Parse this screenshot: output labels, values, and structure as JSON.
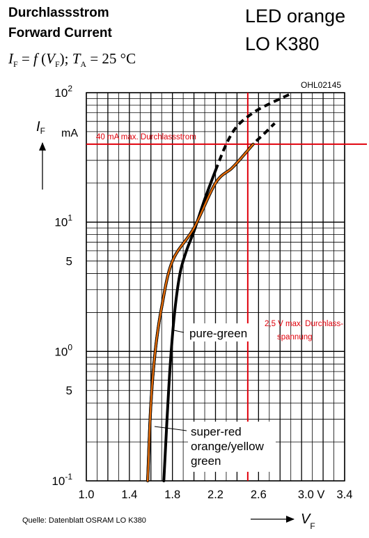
{
  "header": {
    "title_de": "Durchlassstrom",
    "title_en": "Forward Current",
    "formula": {
      "lhs": "I",
      "lhs_sub": "F",
      "eq": " = ",
      "fn": "f",
      "arg": "V",
      "arg_sub": "F",
      "sep": "; ",
      "t": "T",
      "t_sub": "A",
      "t_val": " = 25 °C"
    }
  },
  "product": {
    "line1": "LED orange",
    "line2": "LO K380"
  },
  "footer": {
    "source": "Quelle: Datenblatt OSRAM LO K380"
  },
  "chart_data": {
    "type": "line",
    "figure_code": "OHL02145",
    "xlabel": "V",
    "xlabel_sub": "F",
    "ylabel": "I",
    "ylabel_sub": "F",
    "yunit": "mA",
    "xlim": [
      1.0,
      3.4
    ],
    "ylim": [
      0.1,
      100
    ],
    "yscale": "log",
    "grid": true,
    "x_ticks": [
      {
        "value": 1.0,
        "label": "1.0"
      },
      {
        "value": 1.4,
        "label": "1.4"
      },
      {
        "value": 1.8,
        "label": "1.8"
      },
      {
        "value": 2.2,
        "label": "2.2"
      },
      {
        "value": 2.6,
        "label": "2.6"
      },
      {
        "value": 3.0,
        "label": "3.0 V"
      },
      {
        "value": 3.4,
        "label": "3.4"
      }
    ],
    "y_ticks": [
      {
        "value": 100,
        "base": "10",
        "exp": "2"
      },
      {
        "value": 10,
        "base": "10",
        "exp": "1"
      },
      {
        "value": 5,
        "label": "5"
      },
      {
        "value": 1,
        "base": "10",
        "exp": "0"
      },
      {
        "value": 0.5,
        "label": "5"
      },
      {
        "value": 0.1,
        "base": "10",
        "exp": "-1"
      }
    ],
    "series": [
      {
        "name": "pure-green",
        "color": "#000000",
        "x": [
          1.72,
          1.75,
          1.78,
          1.82,
          1.87,
          1.93,
          2.0,
          2.1,
          2.2,
          2.3,
          2.4,
          2.55,
          2.7,
          2.9
        ],
        "y": [
          0.1,
          0.3,
          0.8,
          2.0,
          4.0,
          6.0,
          8.5,
          15,
          25,
          40,
          55,
          70,
          82,
          98
        ],
        "dashed_from_x": 2.2
      },
      {
        "name": "super-red orange/yellow green",
        "color": "#000000",
        "x": [
          1.57,
          1.6,
          1.64,
          1.7,
          1.8,
          2.0,
          2.2,
          2.35,
          2.45,
          2.55,
          2.65,
          2.75
        ],
        "y": [
          0.1,
          0.4,
          1.0,
          2.2,
          5.0,
          9.0,
          20,
          26,
          32,
          40,
          48,
          58
        ],
        "dashed_from_x": 2.45
      },
      {
        "name": "LED orange LO K380",
        "color": "#E36C0A",
        "x": [
          1.57,
          1.6,
          1.64,
          1.7,
          1.8,
          2.0,
          2.2,
          2.35,
          2.45,
          2.55
        ],
        "y": [
          0.1,
          0.4,
          1.0,
          2.2,
          5.0,
          9.0,
          20,
          26,
          32,
          40
        ]
      }
    ],
    "reference_lines": [
      {
        "axis": "y",
        "value": 40,
        "color": "#E0000B",
        "label": "40 mA max. Durchlassstrom"
      },
      {
        "axis": "x",
        "value": 2.5,
        "color": "#E0000B",
        "label_line1": "2,5 V max. Durchlass-",
        "label_line2": "spannung"
      }
    ],
    "annotations": [
      {
        "text": "pure-green"
      },
      {
        "text_lines": [
          "super-red",
          "orange/yellow",
          "green"
        ]
      }
    ]
  }
}
